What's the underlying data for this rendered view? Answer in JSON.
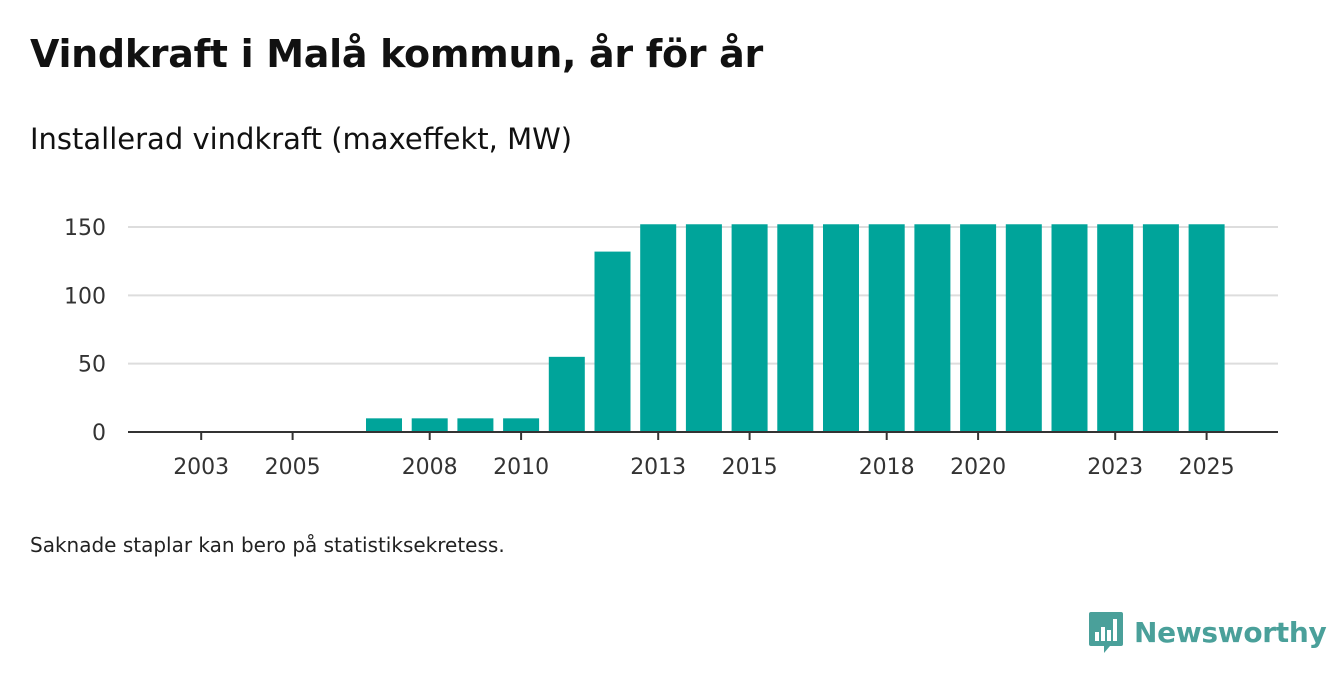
{
  "title": "Vindkraft i Malå kommun, år för år",
  "subtitle": "Installerad vindkraft (maxeffekt, MW)",
  "note": "Saknade staplar kan bero på statistiksekretess.",
  "brand": {
    "name": "Newsworthy",
    "color": "#4aa09a",
    "icon": "bar-chart-speech-bubble-icon"
  },
  "colors": {
    "bar": "#00a49a",
    "grid": "#dddddd",
    "axis": "#333333"
  },
  "chart_data": {
    "type": "bar",
    "title": "Installerad vindkraft (maxeffekt, MW)",
    "xlabel": "",
    "ylabel": "MW",
    "ylim": [
      0,
      150
    ],
    "yticks": [
      0,
      50,
      100,
      150
    ],
    "categories": [
      2002,
      2003,
      2004,
      2005,
      2006,
      2007,
      2008,
      2009,
      2010,
      2011,
      2012,
      2013,
      2014,
      2015,
      2016,
      2017,
      2018,
      2019,
      2020,
      2021,
      2022,
      2023,
      2024,
      2025
    ],
    "values": [
      null,
      null,
      null,
      null,
      null,
      10,
      10,
      10,
      10,
      55,
      132,
      152,
      152,
      152,
      152,
      152,
      152,
      152,
      152,
      152,
      152,
      152,
      152,
      152
    ],
    "xtick_labels": [
      "2003",
      "2005",
      "2008",
      "2010",
      "2013",
      "2015",
      "2018",
      "2020",
      "2023",
      "2025"
    ],
    "grid": true
  }
}
